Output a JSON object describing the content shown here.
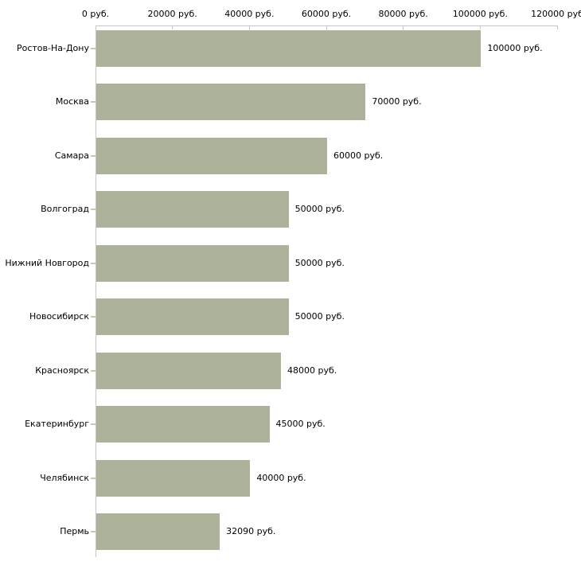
{
  "chart_data": {
    "type": "bar",
    "orientation": "horizontal",
    "title": "",
    "xlabel": "",
    "ylabel": "",
    "unit": "руб.",
    "xlim": [
      0,
      120000
    ],
    "grid": false,
    "legend": false,
    "categories": [
      "Ростов-На-Дону",
      "Москва",
      "Самара",
      "Волгоград",
      "Нижний Новгород",
      "Новосибирск",
      "Красноярск",
      "Екатеринбург",
      "Челябинск",
      "Пермь"
    ],
    "values": [
      100000,
      70000,
      60000,
      50000,
      50000,
      50000,
      48000,
      45000,
      40000,
      32090
    ],
    "value_labels": [
      "100000 руб.",
      "70000 руб.",
      "60000 руб.",
      "50000 руб.",
      "50000 руб.",
      "50000 руб.",
      "48000 руб.",
      "45000 руб.",
      "40000 руб.",
      "32090 руб."
    ],
    "x_ticks": [
      {
        "value": 0,
        "label": "0 руб."
      },
      {
        "value": 20000,
        "label": "20000 руб."
      },
      {
        "value": 40000,
        "label": "40000 руб."
      },
      {
        "value": 60000,
        "label": "60000 руб."
      },
      {
        "value": 80000,
        "label": "80000 руб."
      },
      {
        "value": 100000,
        "label": "100000 руб."
      },
      {
        "value": 120000,
        "label": "120000 руб"
      }
    ],
    "colors": {
      "bar": "#adb39a",
      "axis": "#c5c5c5",
      "tick_mark": "#c9c9a4",
      "text": "#000000",
      "background": "#ffffff"
    }
  }
}
